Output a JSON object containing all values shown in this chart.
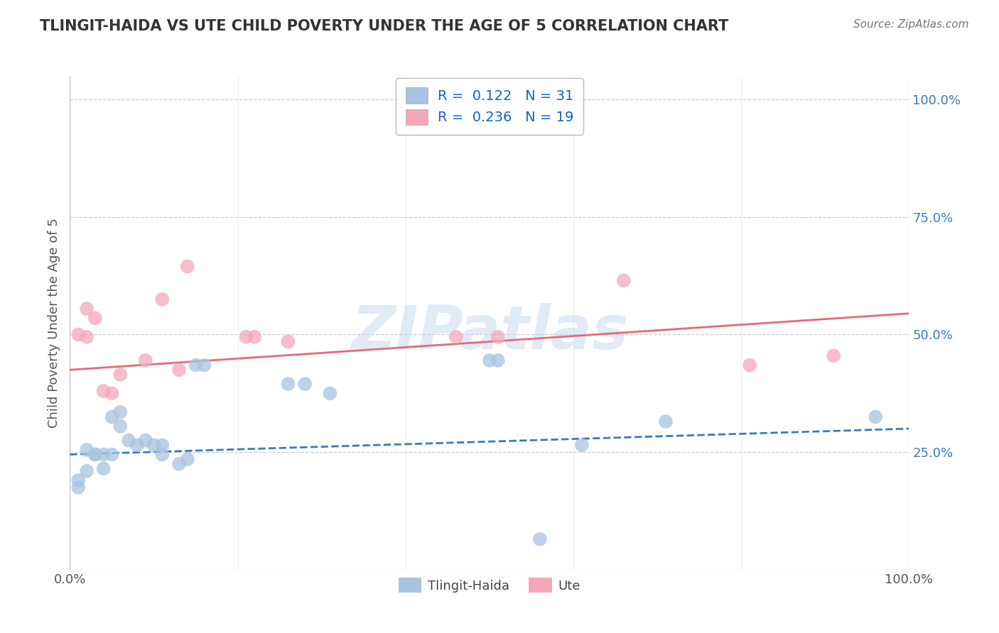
{
  "title": "TLINGIT-HAIDA VS UTE CHILD POVERTY UNDER THE AGE OF 5 CORRELATION CHART",
  "source": "Source: ZipAtlas.com",
  "ylabel": "Child Poverty Under the Age of 5",
  "xlim": [
    0.0,
    1.0
  ],
  "ylim": [
    0.0,
    1.05
  ],
  "tlingit_color": "#a8c4e0",
  "ute_color": "#f4a7b9",
  "tlingit_line_color": "#3a7abf",
  "ute_line_color": "#e8687a",
  "tlingit_R": 0.122,
  "tlingit_N": 31,
  "ute_R": 0.236,
  "ute_N": 19,
  "legend_color": "#1565c0",
  "watermark": "ZIPatlas",
  "tlingit_points": [
    [
      0.01,
      0.19
    ],
    [
      0.01,
      0.175
    ],
    [
      0.02,
      0.21
    ],
    [
      0.02,
      0.255
    ],
    [
      0.03,
      0.245
    ],
    [
      0.03,
      0.245
    ],
    [
      0.04,
      0.245
    ],
    [
      0.04,
      0.215
    ],
    [
      0.05,
      0.245
    ],
    [
      0.05,
      0.325
    ],
    [
      0.06,
      0.335
    ],
    [
      0.06,
      0.305
    ],
    [
      0.07,
      0.275
    ],
    [
      0.08,
      0.265
    ],
    [
      0.09,
      0.275
    ],
    [
      0.1,
      0.265
    ],
    [
      0.11,
      0.245
    ],
    [
      0.11,
      0.265
    ],
    [
      0.13,
      0.225
    ],
    [
      0.14,
      0.235
    ],
    [
      0.15,
      0.435
    ],
    [
      0.16,
      0.435
    ],
    [
      0.26,
      0.395
    ],
    [
      0.28,
      0.395
    ],
    [
      0.31,
      0.375
    ],
    [
      0.5,
      0.445
    ],
    [
      0.51,
      0.445
    ],
    [
      0.56,
      0.065
    ],
    [
      0.61,
      0.265
    ],
    [
      0.71,
      0.315
    ],
    [
      0.96,
      0.325
    ]
  ],
  "ute_points": [
    [
      0.01,
      0.5
    ],
    [
      0.02,
      0.555
    ],
    [
      0.02,
      0.495
    ],
    [
      0.03,
      0.535
    ],
    [
      0.04,
      0.38
    ],
    [
      0.05,
      0.375
    ],
    [
      0.06,
      0.415
    ],
    [
      0.09,
      0.445
    ],
    [
      0.11,
      0.575
    ],
    [
      0.13,
      0.425
    ],
    [
      0.14,
      0.645
    ],
    [
      0.21,
      0.495
    ],
    [
      0.22,
      0.495
    ],
    [
      0.26,
      0.485
    ],
    [
      0.46,
      0.495
    ],
    [
      0.51,
      0.495
    ],
    [
      0.66,
      0.615
    ],
    [
      0.81,
      0.435
    ],
    [
      0.91,
      0.455
    ]
  ],
  "tlingit_line": {
    "x0": 0.0,
    "y0": 0.245,
    "x1": 1.0,
    "y1": 0.3
  },
  "ute_line": {
    "x0": 0.0,
    "y0": 0.425,
    "x1": 1.0,
    "y1": 0.545
  },
  "background_color": "#ffffff",
  "grid_color": "#cccccc"
}
